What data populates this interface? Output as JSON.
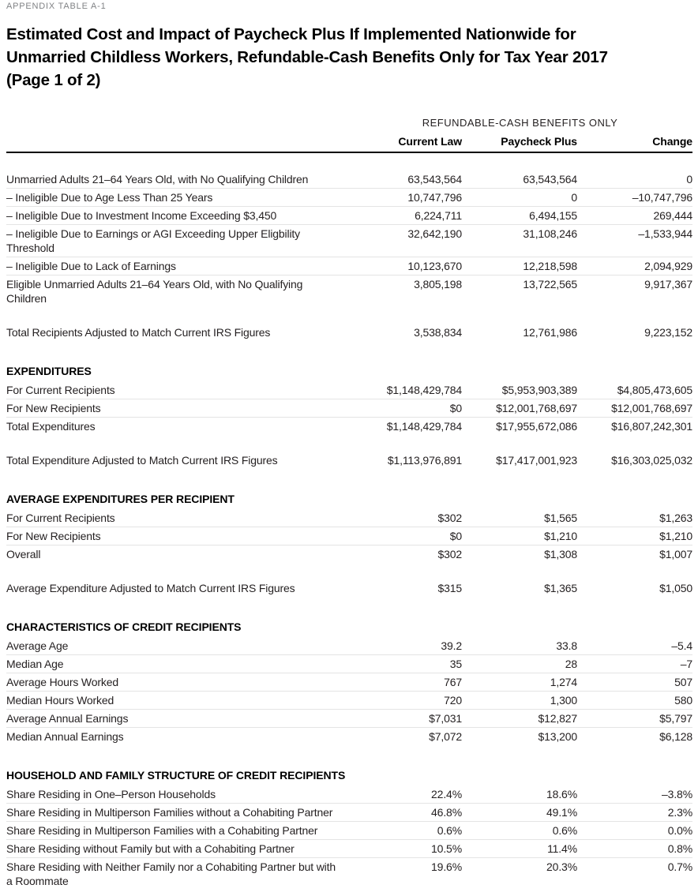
{
  "header": {
    "kicker": "APPENDIX TABLE A-1",
    "title_lines": [
      "Estimated Cost and Impact of Paycheck Plus If Implemented Nationwide for",
      "Unmarried Childless Workers, Refundable-Cash Benefits Only for Tax Year 2017",
      "(Page 1 of 2)"
    ]
  },
  "table": {
    "group_header": "REFUNDABLE-CASH BENEFITS ONLY",
    "columns": [
      "Current Law",
      "Paycheck Plus",
      "Change"
    ],
    "sections": [
      {
        "heading": null,
        "rows": [
          {
            "label": "Unmarried Adults 21–64 Years Old, with No Qualifying Children",
            "values": [
              "63,543,564",
              "63,543,564",
              "0"
            ]
          },
          {
            "label": "– Ineligible Due to Age Less Than 25 Years",
            "values": [
              "10,747,796",
              "0",
              "–10,747,796"
            ]
          },
          {
            "label": "– Ineligible Due to Investment Income Exceeding $3,450",
            "values": [
              "6,224,711",
              "6,494,155",
              "269,444"
            ]
          },
          {
            "label": "– Ineligible Due to Earnings or AGI Exceeding Upper Eligbility Threshold",
            "values": [
              "32,642,190",
              "31,108,246",
              "–1,533,944"
            ]
          },
          {
            "label": "– Ineligible Due to Lack of Earnings",
            "values": [
              "10,123,670",
              "12,218,598",
              "2,094,929"
            ]
          },
          {
            "label": "Eligible Unmarried Adults 21–64 Years Old, with No Qualifying Children",
            "values": [
              "3,805,198",
              "13,722,565",
              "9,917,367"
            ]
          }
        ]
      },
      {
        "heading": null,
        "standalone": true,
        "rows": [
          {
            "label": "Total Recipients Adjusted to Match Current IRS Figures",
            "values": [
              "3,538,834",
              "12,761,986",
              "9,223,152"
            ]
          }
        ]
      },
      {
        "heading": "EXPENDITURES",
        "rows": [
          {
            "label": "For Current Recipients",
            "values": [
              "$1,148,429,784",
              "$5,953,903,389",
              "$4,805,473,605"
            ]
          },
          {
            "label": "For New Recipients",
            "values": [
              "$0",
              "$12,001,768,697",
              "$12,001,768,697"
            ]
          },
          {
            "label": "Total Expenditures",
            "values": [
              "$1,148,429,784",
              "$17,955,672,086",
              "$16,807,242,301"
            ]
          }
        ]
      },
      {
        "heading": null,
        "standalone": true,
        "rows": [
          {
            "label": "Total Expenditure Adjusted to Match Current IRS Figures",
            "values": [
              "$1,113,976,891",
              "$17,417,001,923",
              "$16,303,025,032"
            ]
          }
        ]
      },
      {
        "heading": "AVERAGE EXPENDITURES PER RECIPIENT",
        "rows": [
          {
            "label": "For Current Recipients",
            "values": [
              "$302",
              "$1,565",
              "$1,263"
            ]
          },
          {
            "label": "For New Recipients",
            "values": [
              "$0",
              "$1,210",
              "$1,210"
            ]
          },
          {
            "label": "Overall",
            "values": [
              "$302",
              "$1,308",
              "$1,007"
            ]
          }
        ]
      },
      {
        "heading": null,
        "standalone": true,
        "rows": [
          {
            "label": "Average Expenditure Adjusted to Match Current IRS Figures",
            "values": [
              "$315",
              "$1,365",
              "$1,050"
            ]
          }
        ]
      },
      {
        "heading": "CHARACTERISTICS OF CREDIT RECIPIENTS",
        "rows": [
          {
            "label": "Average Age",
            "values": [
              "39.2",
              "33.8",
              "–5.4"
            ]
          },
          {
            "label": "Median Age",
            "values": [
              "35",
              "28",
              "–7"
            ]
          },
          {
            "label": "Average Hours Worked",
            "values": [
              "767",
              "1,274",
              "507"
            ]
          },
          {
            "label": "Median Hours Worked",
            "values": [
              "720",
              "1,300",
              "580"
            ]
          },
          {
            "label": "Average Annual Earnings",
            "values": [
              "$7,031",
              "$12,827",
              "$5,797"
            ]
          },
          {
            "label": "Median Annual Earnings",
            "values": [
              "$7,072",
              "$13,200",
              "$6,128"
            ]
          }
        ]
      },
      {
        "heading": "HOUSEHOLD AND FAMILY STRUCTURE OF CREDIT RECIPIENTS",
        "rows": [
          {
            "label": "Share Residing in One–Person Households",
            "values": [
              "22.4%",
              "18.6%",
              "–3.8%"
            ]
          },
          {
            "label": "Share Residing in Multiperson Families without a Cohabiting Partner",
            "values": [
              "46.8%",
              "49.1%",
              "2.3%"
            ]
          },
          {
            "label": "Share Residing in Multiperson Families with a Cohabiting Partner",
            "values": [
              "0.6%",
              "0.6%",
              "0.0%"
            ]
          },
          {
            "label": "Share Residing without Family but with a Cohabiting Partner",
            "values": [
              "10.5%",
              "11.4%",
              "0.8%"
            ]
          },
          {
            "label": "Share Residing with Neither Family nor a Cohabiting Partner but with a Roommate",
            "values": [
              "19.6%",
              "20.3%",
              "0.7%"
            ]
          }
        ]
      }
    ]
  },
  "colors": {
    "text": "#231f20",
    "kicker": "#808285",
    "separator": "#e4e4e4",
    "rule": "#000000",
    "bg": "#ffffff"
  }
}
